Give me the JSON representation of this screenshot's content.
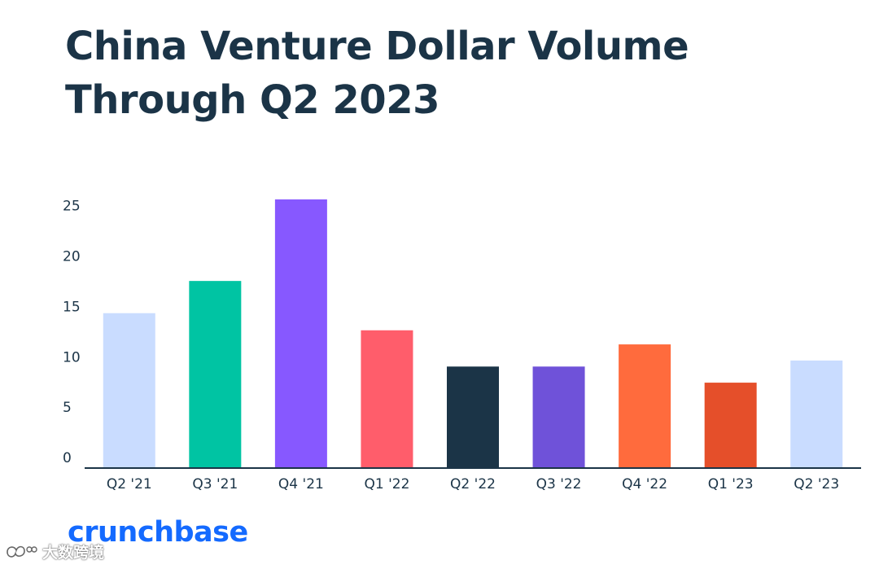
{
  "header": {
    "title": "China Venture Dollar Volume Through Q2 2023"
  },
  "brand": {
    "logo_text": "crunchbase",
    "watermark_text": "大数跨境"
  },
  "chart_data": {
    "type": "bar",
    "title": "China Venture Dollar Volume Through Q2 2023",
    "xlabel": "",
    "ylabel": "",
    "ylim": [
      0,
      27
    ],
    "yticks": [
      0,
      5,
      10,
      15,
      20,
      25
    ],
    "grid": false,
    "categories": [
      "Q2 '21",
      "Q3 '21",
      "Q4 '21",
      "Q1 '22",
      "Q2 '22",
      "Q3 '22",
      "Q4 '22",
      "Q1 '23",
      "Q2 '23"
    ],
    "values": [
      15.3,
      18.5,
      26.6,
      13.6,
      10,
      10,
      12.2,
      8.4,
      10.6
    ],
    "colors": [
      "#c9dcff",
      "#00c4a3",
      "#8758ff",
      "#ff5d6b",
      "#1b3447",
      "#6f52d9",
      "#ff6b3d",
      "#e54f2a",
      "#c9dcff"
    ],
    "axis_color": "#1b3447"
  }
}
